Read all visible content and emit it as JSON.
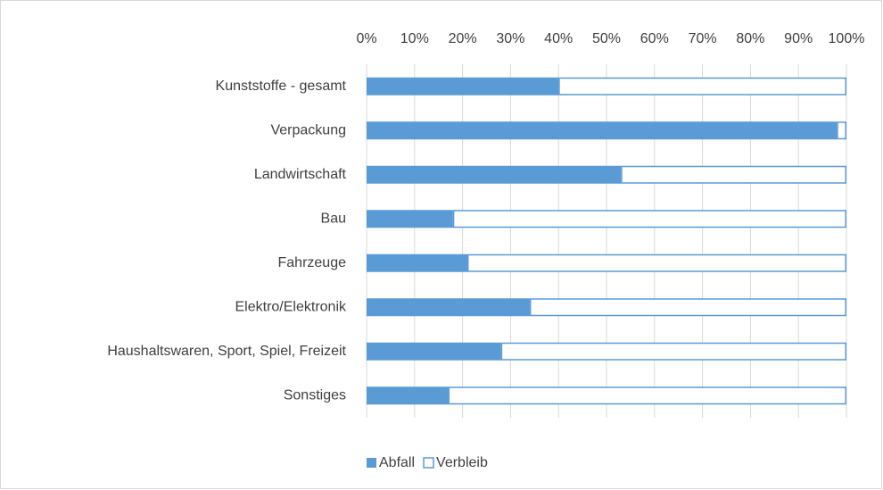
{
  "chart_data": {
    "type": "bar",
    "orientation": "horizontal",
    "stacked": true,
    "categories": [
      "Kunststoffe - gesamt",
      "Verpackung",
      "Landwirtschaft",
      "Bau",
      "Fahrzeuge",
      "Elektro/Elektronik",
      "Haushaltswaren, Sport, Spiel, Freizeit",
      "Sonstiges"
    ],
    "series": [
      {
        "name": "Abfall",
        "color": "#5b9bd5",
        "fill": "solid",
        "values": [
          40,
          98,
          53,
          18,
          21,
          34,
          28,
          17
        ]
      },
      {
        "name": "Verbleib",
        "color": "#5b9bd5",
        "fill": "outline",
        "values": [
          60,
          2,
          47,
          82,
          79,
          66,
          72,
          83
        ]
      }
    ],
    "xlim": [
      0,
      100
    ],
    "xticks": [
      {
        "value": 0,
        "label": "0%"
      },
      {
        "value": 10,
        "label": "10%"
      },
      {
        "value": 20,
        "label": "20%"
      },
      {
        "value": 30,
        "label": "30%"
      },
      {
        "value": 40,
        "label": "40%"
      },
      {
        "value": 50,
        "label": "50%"
      },
      {
        "value": 60,
        "label": "60%"
      },
      {
        "value": 70,
        "label": "70%"
      },
      {
        "value": 80,
        "label": "80%"
      },
      {
        "value": 90,
        "label": "90%"
      },
      {
        "value": 100,
        "label": "100%"
      }
    ],
    "grid": true,
    "legend": "bottom"
  }
}
